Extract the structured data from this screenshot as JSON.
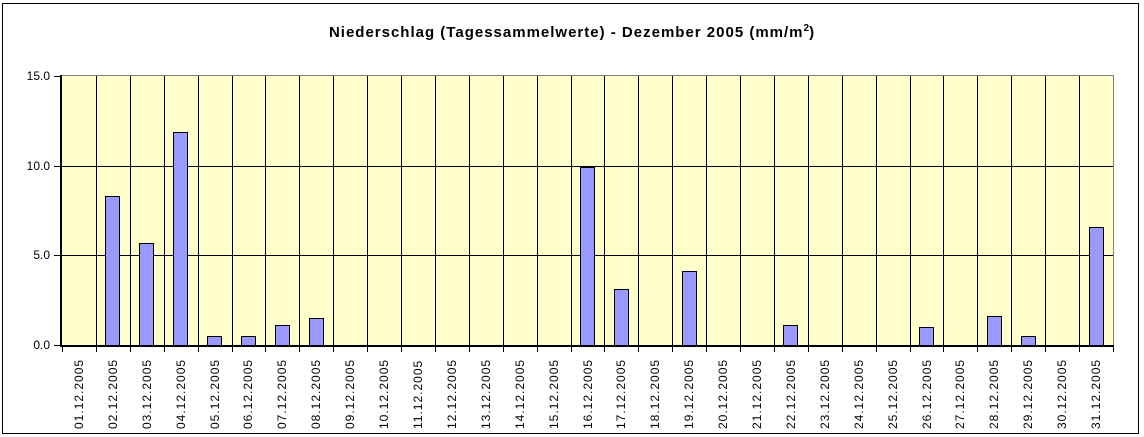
{
  "chart_data": {
    "type": "bar",
    "title": {
      "main": "Niederschlag (Tagessammelwerte) - Dezember 2005 (mm/m",
      "superscript": "2",
      "suffix": ")"
    },
    "categories": [
      "01.12.2005",
      "02.12.2005",
      "03.12.2005",
      "04.12.2005",
      "05.12.2005",
      "06.12.2005",
      "07.12.2005",
      "08.12.2005",
      "09.12.2005",
      "10.12.2005",
      "11.12.2005",
      "12.12.2005",
      "13.12.2005",
      "14.12.2005",
      "15.12.2005",
      "16.12.2005",
      "17.12.2005",
      "18.12.2005",
      "19.12.2005",
      "20.12.2005",
      "21.12.2005",
      "22.12.2005",
      "23.12.2005",
      "24.12.2005",
      "25.12.2005",
      "26.12.2005",
      "27.12.2005",
      "28.12.2005",
      "29.12.2005",
      "30.12.2005",
      "31.12.2005"
    ],
    "values": [
      0,
      8.3,
      5.7,
      11.9,
      0.5,
      0.5,
      1.1,
      1.5,
      0,
      0,
      0,
      0,
      0,
      0,
      0,
      9.9,
      3.1,
      0,
      4.1,
      0,
      0,
      1.1,
      0,
      0,
      0,
      1.0,
      0,
      1.6,
      0.5,
      0,
      6.6
    ],
    "xlabel": "",
    "ylabel": "",
    "ylim": [
      0,
      15
    ],
    "yticks": [
      {
        "label": "15.0",
        "value": 15
      },
      {
        "label": "10.0",
        "value": 10
      },
      {
        "label": "5.0",
        "value": 5
      },
      {
        "label": "0.0",
        "value": 0
      }
    ],
    "grid": {
      "horizontal": true,
      "vertical": true
    },
    "legend_position": "none",
    "colors": {
      "bar_fill": "#9999FF",
      "bar_border": "#000000",
      "plot_background": "#FFFFCC",
      "gridline": "#000000",
      "plot_border": "#808080",
      "frame_border": "#000000",
      "page_background": "#FFFFFF",
      "text": "#000000"
    }
  }
}
